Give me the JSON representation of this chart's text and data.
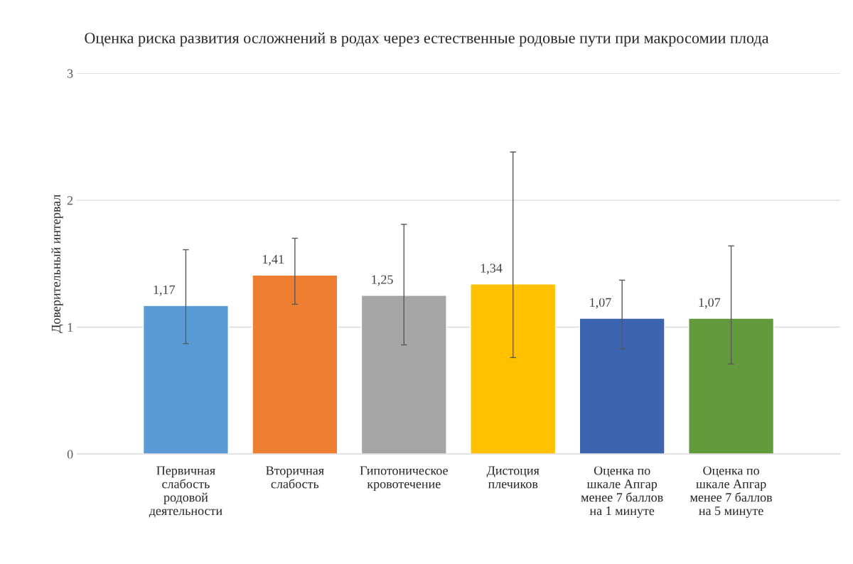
{
  "chart_data": {
    "type": "bar",
    "title": "Оценка риска развития осложнений в родах через естественные родовые пути при макросомии плода",
    "ylabel": "Доверительный интервал",
    "categories": [
      "Первичная\nслабость\nродовой\nдеятельности",
      "Вторичная\nслабость",
      "Гипотоническое\nкровотечение",
      "Дистоция\nплечиков",
      "Оценка по\nшкале Апгар\nменее 7 баллов\nна 1 минуте",
      "Оценка по\nшкале Апгар\nменее 7 баллов\nна 5 минуте"
    ],
    "values": [
      1.17,
      1.41,
      1.25,
      1.34,
      1.07,
      1.07
    ],
    "value_labels": [
      "1,17",
      "1,41",
      "1,25",
      "1,34",
      "1,07",
      "1,07"
    ],
    "colors": [
      "#5b9bd5",
      "#ed7d31",
      "#a5a5a5",
      "#ffc000",
      "#3d64ae",
      "#639a3e"
    ],
    "errors": [
      [
        0.87,
        1.61
      ],
      [
        1.18,
        1.7
      ],
      [
        0.86,
        1.81
      ],
      [
        0.76,
        2.38
      ],
      [
        0.83,
        1.37
      ],
      [
        0.71,
        1.64
      ]
    ],
    "ylim": [
      0,
      3
    ],
    "yticks": [
      0,
      1,
      2,
      3
    ],
    "grid": "y",
    "legend": false
  }
}
